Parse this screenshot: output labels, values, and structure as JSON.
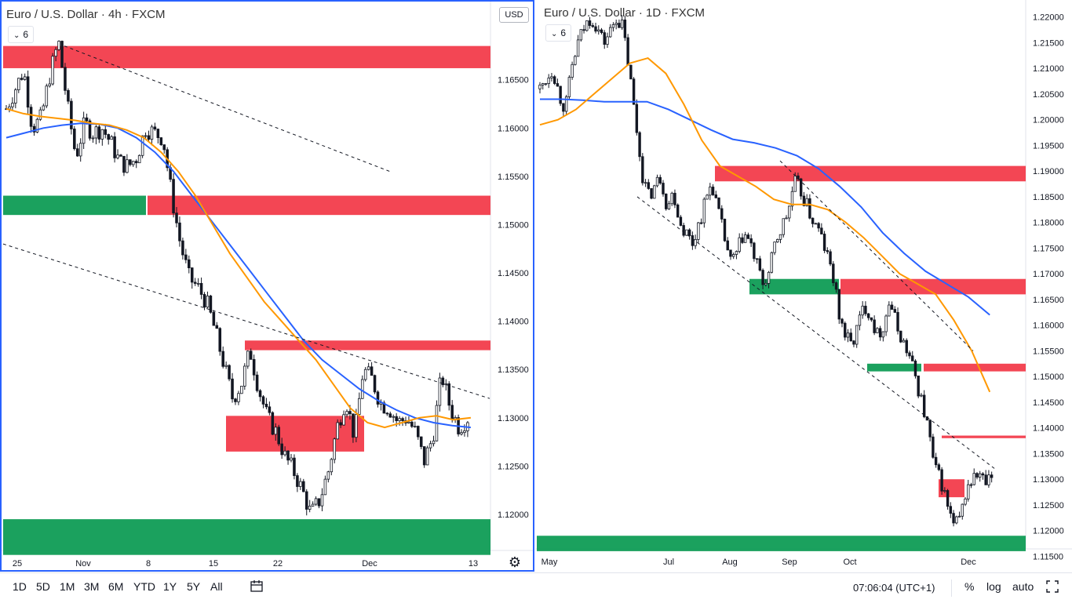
{
  "left_pane": {
    "title": "Euro / U.S. Dollar · 4h · FXCM",
    "indicator_badge": "6",
    "currency_button": "USD",
    "price_ticks": [
      "1.16500",
      "1.16000",
      "1.15500",
      "1.15000",
      "1.14500",
      "1.14000",
      "1.13500",
      "1.13000",
      "1.12500",
      "1.12000"
    ],
    "time_ticks": [
      "25",
      "Nov",
      "8",
      "15",
      "22",
      "Dec",
      "13"
    ]
  },
  "right_pane": {
    "title": "Euro / U.S. Dollar · 1D · FXCM",
    "indicator_badge": "6",
    "price_ticks": [
      "1.22000",
      "1.21500",
      "1.21000",
      "1.20500",
      "1.20000",
      "1.19500",
      "1.19000",
      "1.18500",
      "1.18000",
      "1.17500",
      "1.17000",
      "1.16500",
      "1.16000",
      "1.15500",
      "1.15000",
      "1.14500",
      "1.14000",
      "1.13500",
      "1.13000",
      "1.12500",
      "1.12000",
      "1.11500"
    ],
    "time_ticks": [
      "May",
      "Jul",
      "Aug",
      "Sep",
      "Oct",
      "Dec"
    ]
  },
  "toolbar": {
    "ranges": [
      "1D",
      "5D",
      "1M",
      "3M",
      "6M",
      "YTD",
      "1Y",
      "5Y",
      "All"
    ],
    "clock": "07:06:04 (UTC+1)",
    "percent_label": "%",
    "log_label": "log",
    "auto_label": "auto"
  },
  "colors": {
    "supply_zone": "#f23645",
    "demand_zone": "#089950",
    "candle": "#131722",
    "ma_fast": "#ff9800",
    "ma_slow": "#2962ff",
    "selected_border": "#2962ff"
  },
  "chart_data": [
    {
      "type": "candlestick",
      "title": "Euro / U.S. Dollar · 4h · FXCM",
      "ylim": [
        1.1148,
        1.1718
      ],
      "x_ticks": [
        "25",
        "Nov",
        "8",
        "15",
        "22",
        "Dec",
        "13"
      ],
      "y_ticks": [
        1.165,
        1.16,
        1.155,
        1.15,
        1.145,
        1.14,
        1.135,
        1.13,
        1.125,
        1.12
      ],
      "close_path": [
        1.162,
        1.164,
        1.166,
        1.16,
        1.161,
        1.1655,
        1.169,
        1.1625,
        1.157,
        1.1605,
        1.1595,
        1.16,
        1.1585,
        1.1565,
        1.156,
        1.157,
        1.16,
        1.1595,
        1.159,
        1.153,
        1.148,
        1.1445,
        1.1435,
        1.142,
        1.139,
        1.1355,
        1.132,
        1.1335,
        1.137,
        1.133,
        1.13,
        1.1285,
        1.126,
        1.1245,
        1.1225,
        1.12,
        1.1215,
        1.1245,
        1.129,
        1.132,
        1.128,
        1.135,
        1.134,
        1.1315,
        1.131,
        1.1295,
        1.13,
        1.1285,
        1.1255,
        1.128,
        1.1345,
        1.131,
        1.129,
        1.13
      ],
      "ma_fast_path": [
        1.162,
        1.1615,
        1.1612,
        1.161,
        1.1608,
        1.1605,
        1.1603,
        1.1598,
        1.159,
        1.1575,
        1.1555,
        1.153,
        1.15,
        1.147,
        1.1445,
        1.142,
        1.14,
        1.138,
        1.136,
        1.1335,
        1.131,
        1.1295,
        1.129,
        1.1295,
        1.13,
        1.1302,
        1.1298,
        1.13
      ],
      "ma_slow_path": [
        1.159,
        1.1595,
        1.16,
        1.1603,
        1.1605,
        1.1604,
        1.16,
        1.159,
        1.1575,
        1.1555,
        1.153,
        1.1505,
        1.148,
        1.1455,
        1.143,
        1.1405,
        1.138,
        1.136,
        1.1345,
        1.133,
        1.1318,
        1.1308,
        1.13,
        1.1295,
        1.1292,
        1.129
      ],
      "zones": [
        {
          "kind": "supply",
          "y1": 1.1685,
          "y2": 1.1662
        },
        {
          "kind": "demand",
          "y1": 1.153,
          "y2": 1.151
        },
        {
          "kind": "supply",
          "y1": 1.153,
          "y2": 1.151
        },
        {
          "kind": "supply",
          "y1": 1.138,
          "y2": 1.137
        },
        {
          "kind": "supply",
          "y1": 1.1302,
          "y2": 1.1265
        },
        {
          "kind": "demand",
          "y1": 1.1195,
          "y2": 1.1158
        }
      ],
      "trendlines": [
        {
          "from": [
            1.1685,
            "25"
          ],
          "to": [
            1.1555,
            "8"
          ]
        },
        {
          "from": [
            1.148,
            "25"
          ],
          "to": [
            1.132,
            "13"
          ]
        }
      ]
    },
    {
      "type": "candlestick",
      "title": "Euro / U.S. Dollar · 1D · FXCM",
      "ylim": [
        1.114,
        1.223
      ],
      "x_ticks": [
        "May",
        "Jul",
        "Aug",
        "Sep",
        "Oct",
        "Dec"
      ],
      "y_ticks": [
        1.22,
        1.215,
        1.21,
        1.205,
        1.2,
        1.195,
        1.19,
        1.185,
        1.18,
        1.175,
        1.17,
        1.165,
        1.16,
        1.155,
        1.15,
        1.145,
        1.14,
        1.135,
        1.13,
        1.125,
        1.12,
        1.115
      ],
      "close_path": [
        1.206,
        1.208,
        1.21,
        1.205,
        1.202,
        1.21,
        1.215,
        1.218,
        1.22,
        1.218,
        1.215,
        1.217,
        1.22,
        1.218,
        1.21,
        1.2,
        1.19,
        1.185,
        1.187,
        1.189,
        1.183,
        1.186,
        1.18,
        1.178,
        1.176,
        1.18,
        1.184,
        1.188,
        1.182,
        1.177,
        1.172,
        1.174,
        1.178,
        1.176,
        1.172,
        1.168,
        1.17,
        1.176,
        1.179,
        1.182,
        1.188,
        1.186,
        1.183,
        1.18,
        1.178,
        1.174,
        1.17,
        1.162,
        1.158,
        1.156,
        1.16,
        1.164,
        1.162,
        1.158,
        1.16,
        1.165,
        1.16,
        1.157,
        1.154,
        1.15,
        1.145,
        1.14,
        1.132,
        1.13,
        1.125,
        1.121,
        1.122,
        1.128,
        1.13,
        1.131,
        1.129,
        1.13
      ],
      "ma_fast_path": [
        1.199,
        1.2,
        1.202,
        1.205,
        1.208,
        1.211,
        1.212,
        1.209,
        1.203,
        1.196,
        1.191,
        1.189,
        1.187,
        1.1845,
        1.1835,
        1.1835,
        1.1825,
        1.18,
        1.177,
        1.1735,
        1.17,
        1.168,
        1.166,
        1.161,
        1.155,
        1.147
      ],
      "ma_slow_path": [
        1.204,
        1.204,
        1.2038,
        1.2035,
        1.2035,
        1.2035,
        1.202,
        1.2,
        1.198,
        1.1962,
        1.1955,
        1.1945,
        1.193,
        1.1905,
        1.187,
        1.183,
        1.178,
        1.174,
        1.1705,
        1.168,
        1.1655,
        1.162
      ],
      "zones": [
        {
          "kind": "supply",
          "y1": 1.191,
          "y2": 1.188
        },
        {
          "kind": "demand",
          "y1": 1.169,
          "y2": 1.166
        },
        {
          "kind": "supply",
          "y1": 1.169,
          "y2": 1.166
        },
        {
          "kind": "demand",
          "y1": 1.1525,
          "y2": 1.151
        },
        {
          "kind": "supply",
          "y1": 1.1525,
          "y2": 1.151
        },
        {
          "kind": "supply",
          "y1": 1.1385,
          "y2": 1.138
        },
        {
          "kind": "supply",
          "y1": 1.13,
          "y2": 1.1265
        },
        {
          "kind": "demand",
          "y1": 1.119,
          "y2": 1.116
        }
      ],
      "trendlines": [
        {
          "from": [
            1.185,
            "Jul"
          ],
          "to": [
            1.132,
            "Dec"
          ]
        },
        {
          "from": [
            1.192,
            "Sep"
          ],
          "to": [
            1.155,
            "Dec"
          ]
        }
      ]
    }
  ]
}
